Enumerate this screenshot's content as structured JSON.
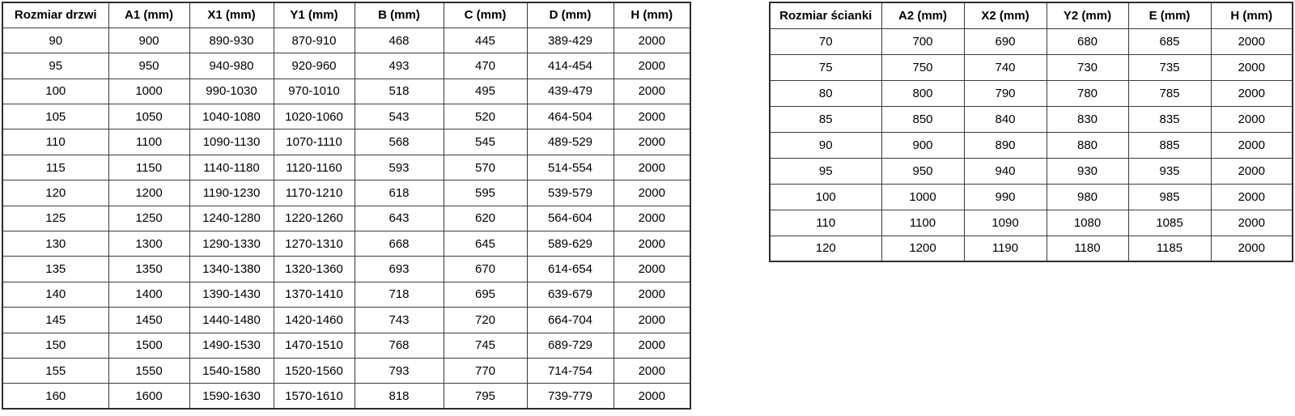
{
  "colors": {
    "background": "#ffffff",
    "grid_border": "#3b3b3b",
    "outer_border": "#2e2e2e",
    "text": "#000000"
  },
  "chart_data": [
    {
      "type": "table",
      "name": "door-dimensions",
      "columns": [
        "Rozmiar drzwi",
        "A1 (mm)",
        "X1 (mm)",
        "Y1 (mm)",
        "B (mm)",
        "C (mm)",
        "D (mm)",
        "H (mm)"
      ],
      "rows": [
        [
          "90",
          "900",
          "890-930",
          "870-910",
          "468",
          "445",
          "389-429",
          "2000"
        ],
        [
          "95",
          "950",
          "940-980",
          "920-960",
          "493",
          "470",
          "414-454",
          "2000"
        ],
        [
          "100",
          "1000",
          "990-1030",
          "970-1010",
          "518",
          "495",
          "439-479",
          "2000"
        ],
        [
          "105",
          "1050",
          "1040-1080",
          "1020-1060",
          "543",
          "520",
          "464-504",
          "2000"
        ],
        [
          "110",
          "1100",
          "1090-1130",
          "1070-1110",
          "568",
          "545",
          "489-529",
          "2000"
        ],
        [
          "115",
          "1150",
          "1140-1180",
          "1120-1160",
          "593",
          "570",
          "514-554",
          "2000"
        ],
        [
          "120",
          "1200",
          "1190-1230",
          "1170-1210",
          "618",
          "595",
          "539-579",
          "2000"
        ],
        [
          "125",
          "1250",
          "1240-1280",
          "1220-1260",
          "643",
          "620",
          "564-604",
          "2000"
        ],
        [
          "130",
          "1300",
          "1290-1330",
          "1270-1310",
          "668",
          "645",
          "589-629",
          "2000"
        ],
        [
          "135",
          "1350",
          "1340-1380",
          "1320-1360",
          "693",
          "670",
          "614-654",
          "2000"
        ],
        [
          "140",
          "1400",
          "1390-1430",
          "1370-1410",
          "718",
          "695",
          "639-679",
          "2000"
        ],
        [
          "145",
          "1450",
          "1440-1480",
          "1420-1460",
          "743",
          "720",
          "664-704",
          "2000"
        ],
        [
          "150",
          "1500",
          "1490-1530",
          "1470-1510",
          "768",
          "745",
          "689-729",
          "2000"
        ],
        [
          "155",
          "1550",
          "1540-1580",
          "1520-1560",
          "793",
          "770",
          "714-754",
          "2000"
        ],
        [
          "160",
          "1600",
          "1590-1630",
          "1570-1610",
          "818",
          "795",
          "739-779",
          "2000"
        ]
      ]
    },
    {
      "type": "table",
      "name": "wall-dimensions",
      "columns": [
        "Rozmiar ścianki",
        "A2 (mm)",
        "X2 (mm)",
        "Y2 (mm)",
        "E (mm)",
        "H (mm)"
      ],
      "rows": [
        [
          "70",
          "700",
          "690",
          "680",
          "685",
          "2000"
        ],
        [
          "75",
          "750",
          "740",
          "730",
          "735",
          "2000"
        ],
        [
          "80",
          "800",
          "790",
          "780",
          "785",
          "2000"
        ],
        [
          "85",
          "850",
          "840",
          "830",
          "835",
          "2000"
        ],
        [
          "90",
          "900",
          "890",
          "880",
          "885",
          "2000"
        ],
        [
          "95",
          "950",
          "940",
          "930",
          "935",
          "2000"
        ],
        [
          "100",
          "1000",
          "990",
          "980",
          "985",
          "2000"
        ],
        [
          "110",
          "1100",
          "1090",
          "1080",
          "1085",
          "2000"
        ],
        [
          "120",
          "1200",
          "1190",
          "1180",
          "1185",
          "2000"
        ]
      ]
    }
  ]
}
